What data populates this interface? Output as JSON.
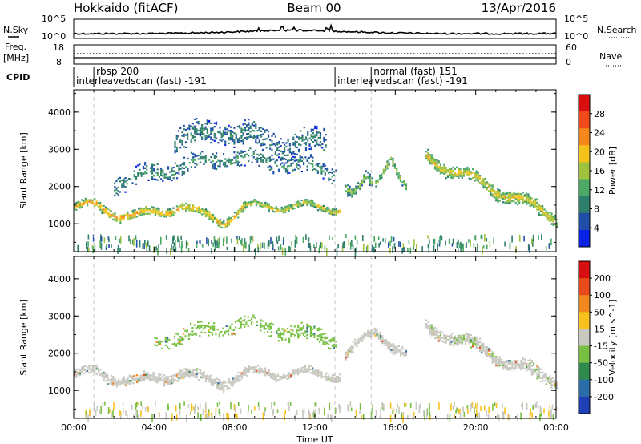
{
  "header": {
    "station": "Hokkaido (fitACF)",
    "beam": "Beam 00",
    "date": "13/Apr/2016"
  },
  "status_panel": {
    "nsky_label": "N.Sky",
    "nsearch_label": "N.Search",
    "freq_label": "Freq.",
    "freq_unit": "[MHz]",
    "nave_label": "Nave",
    "cpid_label": "CPID",
    "noise_ticks_left": [
      "10^5",
      "10^0"
    ],
    "noise_ticks_right": [
      "10^5",
      "10^0"
    ],
    "freq_ticks_left": [
      "18",
      "8"
    ],
    "nave_ticks_right": [
      "60",
      "0"
    ]
  },
  "cpid_segments": [
    {
      "start_hour": 0.0,
      "label": "interleavedscan (fast) -191"
    },
    {
      "start_hour": 1.0,
      "label": "rbsp 200"
    },
    {
      "start_hour": 13.0,
      "label": "interleavedscan (fast) -191"
    },
    {
      "start_hour": 14.8,
      "label": "normal (fast) 151"
    }
  ],
  "chart_data": [
    {
      "type": "heatmap",
      "name": "power",
      "xlabel": "Time UT",
      "ylabel": "Slant Range [km]",
      "xlim": [
        0,
        24
      ],
      "ylim": [
        250,
        4600
      ],
      "xticks": [
        "00:00",
        "04:00",
        "08:00",
        "12:00",
        "16:00",
        "20:00",
        "00:00"
      ],
      "yticks": [
        1000,
        2000,
        3000,
        4000
      ],
      "colorbar": {
        "label": "Power [dB]",
        "ticks": [
          4,
          8,
          12,
          16,
          20,
          24,
          28
        ],
        "range": [
          0,
          32
        ],
        "colors": [
          "#0a22e6",
          "#1f4fa8",
          "#2e7f6c",
          "#4ba865",
          "#9fc23e",
          "#f4c21a",
          "#f5881c",
          "#ee4a1a",
          "#d90f0f"
        ]
      },
      "echo_bands": [
        {
          "t0": 0.0,
          "t1": 4.2,
          "center_km": [
            1450,
            1500,
            1300,
            1200,
            1350
          ],
          "width_km": 260,
          "level_db": 22
        },
        {
          "t0": 4.2,
          "t1": 8.5,
          "center_km": [
            1350,
            1500,
            1250,
            1100,
            1450
          ],
          "width_km": 260,
          "level_db": 21
        },
        {
          "t0": 8.5,
          "t1": 13.2,
          "center_km": [
            1450,
            1500,
            1500,
            1450,
            1450
          ],
          "width_km": 220,
          "level_db": 18
        },
        {
          "t0": 2.0,
          "t1": 13.0,
          "center_km": [
            2100,
            2500,
            2800,
            2700,
            2400
          ],
          "width_km": 500,
          "level_db": 10
        },
        {
          "t0": 5.0,
          "t1": 12.5,
          "center_km": [
            3300,
            3500,
            3400,
            3100,
            3300
          ],
          "width_km": 700,
          "level_db": 9
        },
        {
          "t0": 13.5,
          "t1": 14.8,
          "center_km": [
            2000,
            1800,
            1900,
            2200,
            2100
          ],
          "width_km": 300,
          "level_db": 15
        },
        {
          "t0": 15.0,
          "t1": 16.5,
          "center_km": [
            2100,
            2500,
            2900,
            2400,
            2000
          ],
          "width_km": 250,
          "level_db": 16
        },
        {
          "t0": 17.5,
          "t1": 24.0,
          "center_km": [
            2800,
            2400,
            2000,
            1600,
            1200
          ],
          "width_km": 380,
          "level_db": 19
        }
      ]
    },
    {
      "type": "heatmap",
      "name": "velocity",
      "xlabel": "Time UT",
      "ylabel": "Slant Range [km]",
      "xlim": [
        0,
        24
      ],
      "ylim": [
        250,
        4600
      ],
      "xticks": [
        "00:00",
        "04:00",
        "08:00",
        "12:00",
        "16:00",
        "20:00",
        "00:00"
      ],
      "yticks": [
        1000,
        2000,
        3000,
        4000
      ],
      "colorbar": {
        "label": "Velocity [m s^-1]",
        "ticks": [
          200,
          100,
          50,
          15,
          -15,
          -50,
          -100,
          -200
        ],
        "colors": [
          "#1f3fb4",
          "#2a6da8",
          "#2e8a4d",
          "#78c043",
          "#c8c8c0",
          "#f7c21f",
          "#f18920",
          "#e84a1c",
          "#d80f10"
        ]
      },
      "echo_bands": [
        {
          "t0": 0.0,
          "t1": 4.2,
          "center_km": [
            1450,
            1500,
            1350,
            1250,
            1350
          ],
          "width_km": 300,
          "level_ms": 0
        },
        {
          "t0": 4.2,
          "t1": 8.5,
          "center_km": [
            1350,
            1500,
            1300,
            1250,
            1450
          ],
          "width_km": 300,
          "level_ms": 0
        },
        {
          "t0": 8.5,
          "t1": 13.2,
          "center_km": [
            1450,
            1500,
            1500,
            1450,
            1450
          ],
          "width_km": 260,
          "level_ms": 0
        },
        {
          "t0": 4.0,
          "t1": 13.0,
          "center_km": [
            2300,
            2600,
            2800,
            2600,
            2400
          ],
          "width_km": 450,
          "level_ms": 30
        },
        {
          "t0": 13.5,
          "t1": 16.5,
          "center_km": [
            2000,
            2300,
            2600,
            2300,
            2000
          ],
          "width_km": 300,
          "level_ms": 0
        },
        {
          "t0": 17.5,
          "t1": 24.0,
          "center_km": [
            2700,
            2400,
            2000,
            1600,
            1300
          ],
          "width_km": 380,
          "level_ms": 5
        }
      ]
    }
  ]
}
